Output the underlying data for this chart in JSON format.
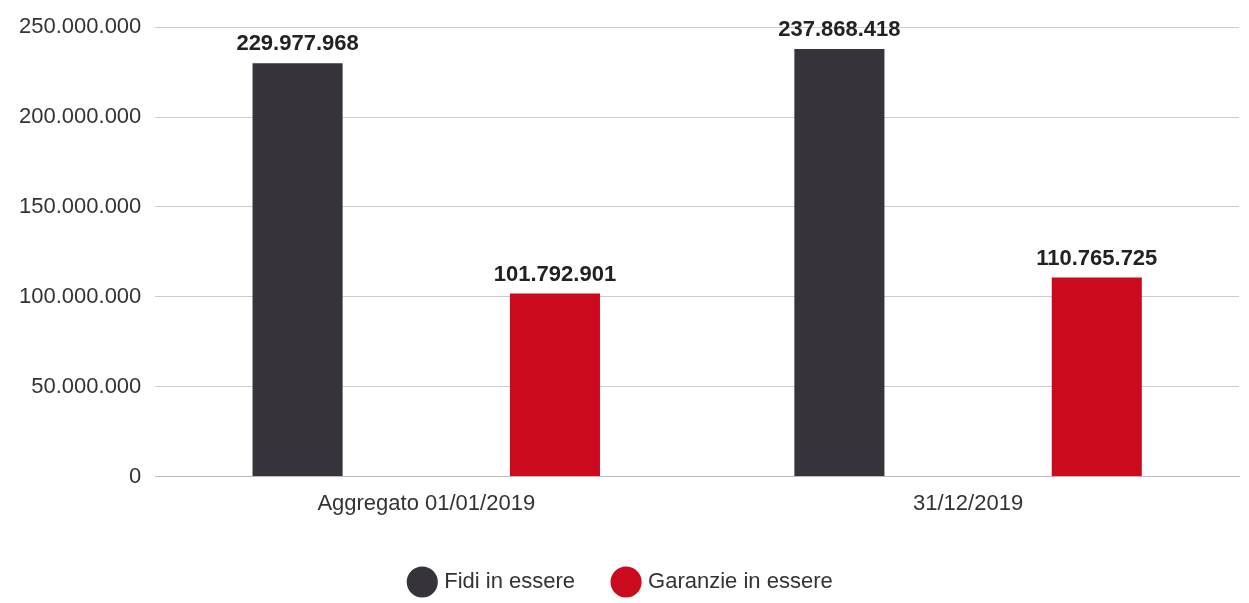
{
  "chart_data": {
    "type": "bar",
    "categories": [
      "Aggregato 01/01/2019",
      "31/12/2019"
    ],
    "series": [
      {
        "name": "Fidi in essere",
        "color": "#36333a",
        "values": [
          229977968,
          237868418
        ],
        "value_labels": [
          "229.977.968",
          "237.868.418"
        ]
      },
      {
        "name": "Garanzie in essere",
        "color": "#cc0a1e",
        "values": [
          101792901,
          110765725
        ],
        "value_labels": [
          "101.792.901",
          "110.765.725"
        ]
      }
    ],
    "ylim": [
      0,
      250000000
    ],
    "yticks": [
      {
        "value": 0,
        "label": "0"
      },
      {
        "value": 50000000,
        "label": "50.000.000"
      },
      {
        "value": 100000000,
        "label": "100.000.000"
      },
      {
        "value": 150000000,
        "label": "150.000.000"
      },
      {
        "value": 200000000,
        "label": "200.000.000"
      },
      {
        "value": 250000000,
        "label": "250.000.000"
      }
    ],
    "grid": "y",
    "legend": "bottom"
  }
}
